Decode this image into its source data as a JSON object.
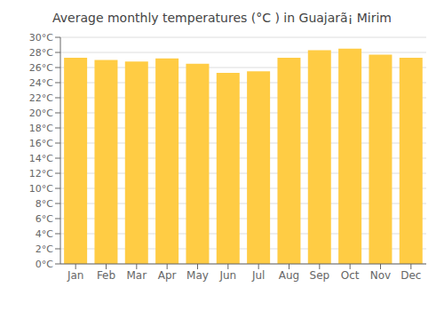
{
  "chart_data": {
    "type": "bar",
    "title": "Average monthly temperatures (°C ) in Guajarã¡ Mirim",
    "categories": [
      "Jan",
      "Feb",
      "Mar",
      "Apr",
      "May",
      "Jun",
      "Jul",
      "Aug",
      "Sep",
      "Oct",
      "Nov",
      "Dec"
    ],
    "values": [
      27.3,
      27.0,
      26.8,
      27.2,
      26.5,
      25.3,
      25.5,
      27.3,
      28.3,
      28.5,
      27.7,
      27.3
    ],
    "color": "#FFCC44",
    "ylim": [
      0,
      30
    ],
    "yticks": [
      {
        "value": 0,
        "label": "0°C"
      },
      {
        "value": 2,
        "label": "2°C"
      },
      {
        "value": 4,
        "label": "4°C"
      },
      {
        "value": 6,
        "label": "6°C"
      },
      {
        "value": 8,
        "label": "8°C"
      },
      {
        "value": 10,
        "label": "10°C"
      },
      {
        "value": 12,
        "label": "12°C"
      },
      {
        "value": 14,
        "label": "14°C"
      },
      {
        "value": 16,
        "label": "16°C"
      },
      {
        "value": 18,
        "label": "18°C"
      },
      {
        "value": 20,
        "label": "20°C"
      },
      {
        "value": 22,
        "label": "22°C"
      },
      {
        "value": 24,
        "label": "24°C"
      },
      {
        "value": 26,
        "label": "26°C"
      },
      {
        "value": 28,
        "label": "28°C"
      },
      {
        "value": 30,
        "label": "30°C"
      }
    ],
    "grid": true
  }
}
